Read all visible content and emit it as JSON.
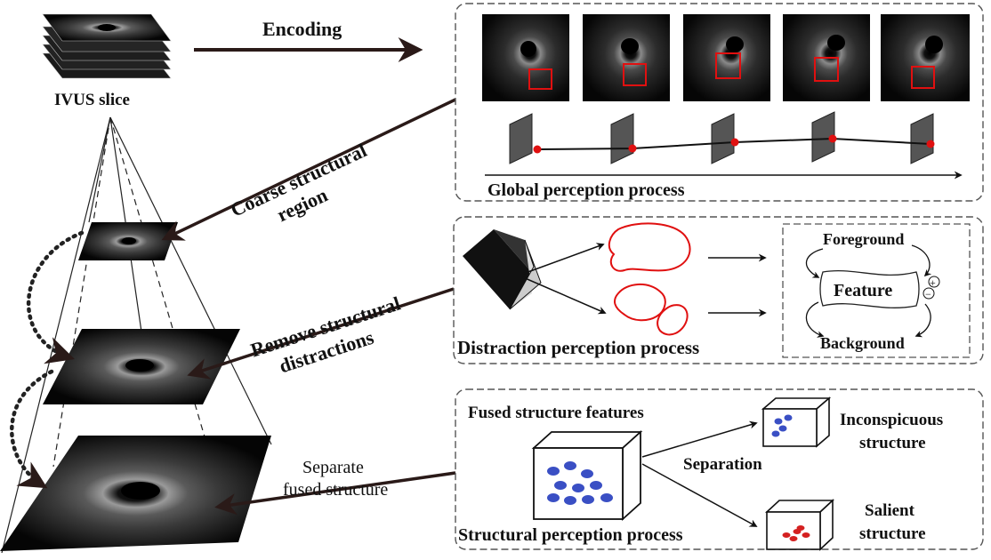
{
  "labels": {
    "encoding": "Encoding",
    "ivus_slice": "IVUS slice",
    "coarse_line1": "Coarse structural",
    "coarse_line2": "region",
    "remove_line1": "Remove structural",
    "remove_line2": "distractions",
    "separate_line1": "Separate",
    "separate_line2": "fused structure"
  },
  "global_panel": {
    "title": "Global perception process",
    "frame_count": 5
  },
  "distraction_panel": {
    "title": "Distraction perception process",
    "foreground": "Foreground",
    "feature": "Feature",
    "background": "Background",
    "plus": "+",
    "minus": "−"
  },
  "structural_panel": {
    "title": "Structural perception process",
    "fused": "Fused structure features",
    "separation": "Separation",
    "inconspicuous_line1": "Inconspicuous",
    "inconspicuous_line2": "structure",
    "salient_line1": "Salient",
    "salient_line2": "structure"
  },
  "colors": {
    "arrow": "#3a2420",
    "highlight": "#e01010",
    "blue_dots": "#3a4fc4",
    "red_dots": "#d42020"
  }
}
